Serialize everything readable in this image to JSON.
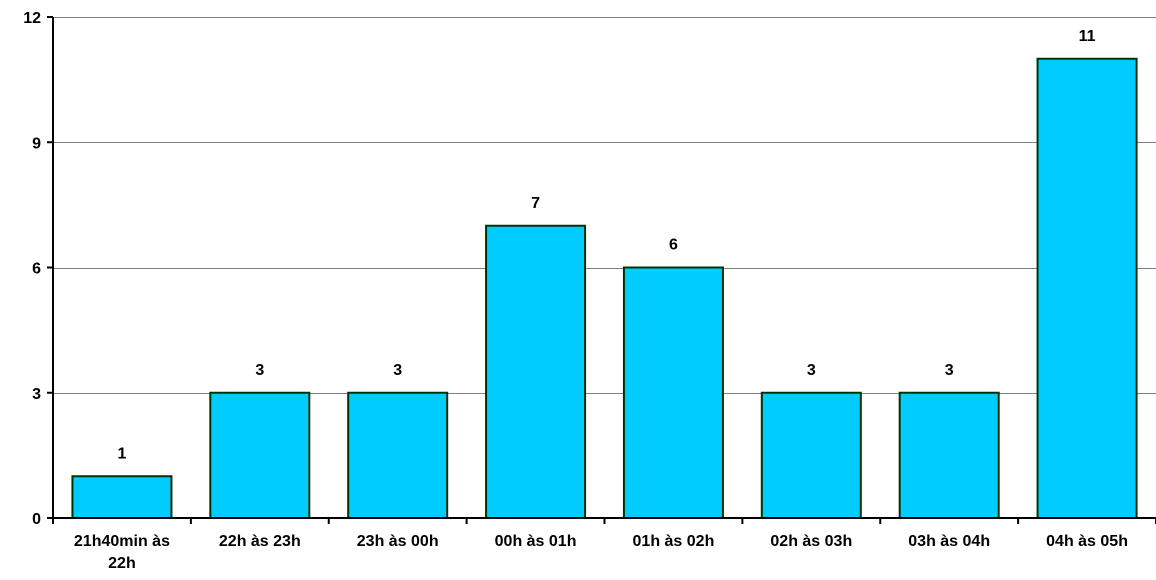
{
  "chart_data": {
    "type": "bar",
    "categories": [
      "21h40min às 22h",
      "22h às 23h",
      "23h às 00h",
      "00h às 01h",
      "01h às 02h",
      "02h às 03h",
      "03h às 04h",
      "04h às 05h"
    ],
    "category_lines": [
      [
        "21h40min às",
        "22h"
      ],
      [
        "22h às 23h"
      ],
      [
        "23h às 00h"
      ],
      [
        "00h às 01h"
      ],
      [
        "01h às 02h"
      ],
      [
        "02h às 03h"
      ],
      [
        "03h às 04h"
      ],
      [
        "04h às 05h"
      ]
    ],
    "values": [
      1,
      3,
      3,
      7,
      6,
      3,
      3,
      11
    ],
    "data_labels": [
      "1",
      "3",
      "3",
      "7",
      "6",
      "3",
      "3",
      "11"
    ],
    "ylim": [
      0,
      12
    ],
    "yticks": [
      0,
      3,
      6,
      9,
      12
    ],
    "ytick_labels": [
      "0",
      "3",
      "6",
      "9",
      "12"
    ],
    "grid": true,
    "legend": false,
    "title": "",
    "xlabel": "",
    "ylabel": "",
    "colors": {
      "bar_fill": "#00CCFF",
      "bar_stroke": "#003300",
      "grid": "#808080",
      "axis": "#000000"
    }
  }
}
